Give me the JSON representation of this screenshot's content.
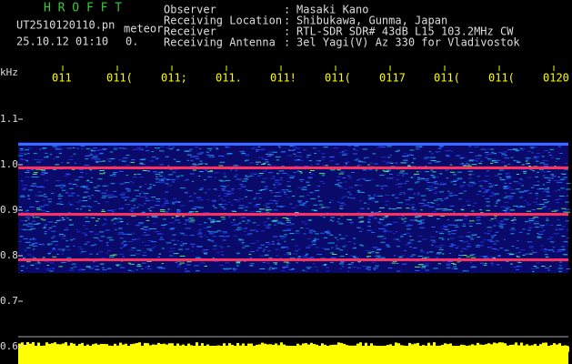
{
  "header": {
    "program": "H R O F F T",
    "file": "UT2510120110.pn",
    "file_suffix": "meteor",
    "datetime": "25.10.12 01:10",
    "counter": "0."
  },
  "separator": ":",
  "info": [
    {
      "label": "Observer",
      "value": "Masaki Kano"
    },
    {
      "label": "Receiving Location",
      "value": "Shibukawa, Gunma, Japan"
    },
    {
      "label": "Receiver",
      "value": "RTL-SDR SDR# 43dB L15 103.2MHz CW"
    },
    {
      "label": "Receiving Antenna",
      "value": "3el Yagi(V) Az 330 for Vladivostok"
    }
  ],
  "axis": {
    "unit": "kHz",
    "y_labels": [
      "1.1",
      "1.0",
      "0.9",
      "0.8",
      "0.7",
      "0.6"
    ],
    "time_labels": [
      "011",
      "011(",
      "011;",
      "011.",
      "011!",
      "011(",
      "0117",
      "011(",
      "011(",
      "0120"
    ]
  }
}
